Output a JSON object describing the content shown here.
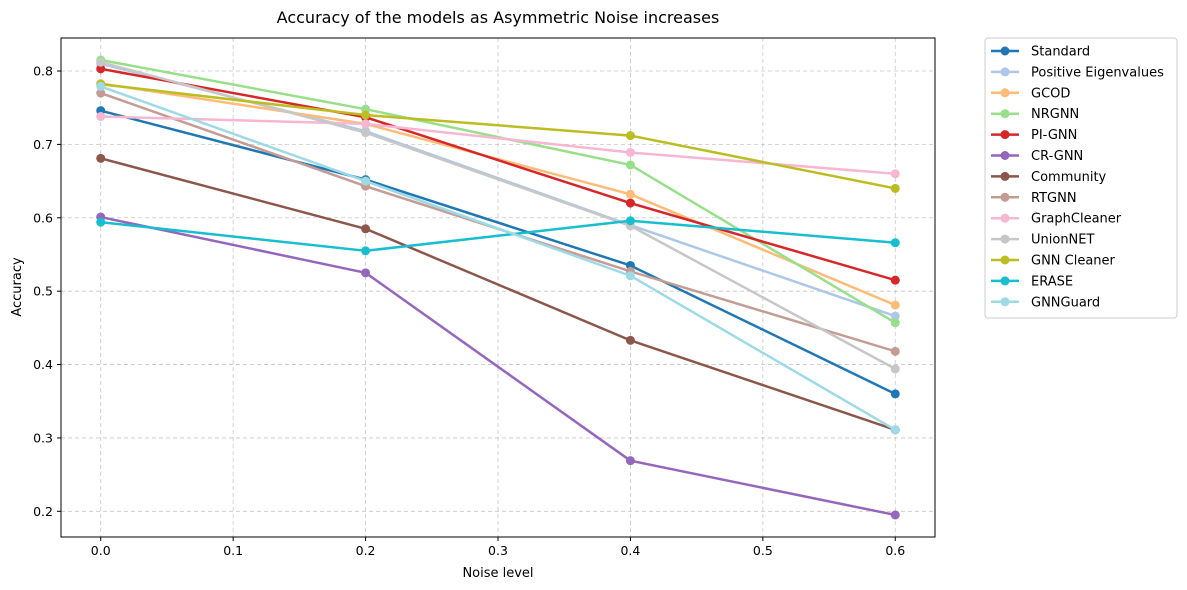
{
  "chart_data": {
    "type": "line",
    "title": "Accuracy of the models as Asymmetric Noise increases",
    "xlabel": "Noise level",
    "ylabel": "Accuracy",
    "x": [
      0.0,
      0.2,
      0.4,
      0.6
    ],
    "xlim": [
      -0.03,
      0.63
    ],
    "ylim": [
      0.165,
      0.845
    ],
    "xticks": [
      "0.0",
      "0.1",
      "0.2",
      "0.3",
      "0.4",
      "0.5",
      "0.6"
    ],
    "xtick_values": [
      0.0,
      0.1,
      0.2,
      0.3,
      0.4,
      0.5,
      0.6
    ],
    "yticks": [
      "0.2",
      "0.3",
      "0.4",
      "0.5",
      "0.6",
      "0.7",
      "0.8"
    ],
    "ytick_values": [
      0.2,
      0.3,
      0.4,
      0.5,
      0.6,
      0.7,
      0.8
    ],
    "grid": true,
    "legend_position": "outside-right-top",
    "series": [
      {
        "name": "Standard",
        "color": "#1f77b4",
        "values": [
          0.746,
          0.652,
          0.535,
          0.36
        ]
      },
      {
        "name": "Positive Eigenvalues",
        "color": "#aec7e8",
        "values": [
          0.81,
          0.718,
          0.59,
          0.466
        ]
      },
      {
        "name": "GCOD",
        "color": "#ffbb78",
        "values": [
          0.783,
          0.728,
          0.632,
          0.481
        ]
      },
      {
        "name": "NRGNN",
        "color": "#98df8a",
        "values": [
          0.815,
          0.748,
          0.672,
          0.457
        ]
      },
      {
        "name": "PI-GNN",
        "color": "#d62728",
        "values": [
          0.803,
          0.737,
          0.62,
          0.515
        ]
      },
      {
        "name": "CR-GNN",
        "color": "#9467bd",
        "values": [
          0.601,
          0.525,
          0.269,
          0.195
        ]
      },
      {
        "name": "Community",
        "color": "#8c564b",
        "values": [
          0.681,
          0.585,
          0.433,
          0.311
        ]
      },
      {
        "name": "RTGNN",
        "color": "#c49c94",
        "values": [
          0.77,
          0.643,
          0.527,
          0.418
        ]
      },
      {
        "name": "GraphCleaner",
        "color": "#f7b6d2",
        "values": [
          0.738,
          0.728,
          0.689,
          0.66
        ]
      },
      {
        "name": "UnionNET",
        "color": "#c7c7c7",
        "values": [
          0.812,
          0.716,
          0.589,
          0.394
        ]
      },
      {
        "name": "GNN Cleaner",
        "color": "#bcbd22",
        "values": [
          0.782,
          0.74,
          0.712,
          0.64
        ]
      },
      {
        "name": "ERASE",
        "color": "#17becf",
        "values": [
          0.594,
          0.555,
          0.596,
          0.566
        ]
      },
      {
        "name": "GNNGuard",
        "color": "#9edae5",
        "values": [
          0.779,
          0.65,
          0.521,
          0.311
        ]
      }
    ]
  }
}
